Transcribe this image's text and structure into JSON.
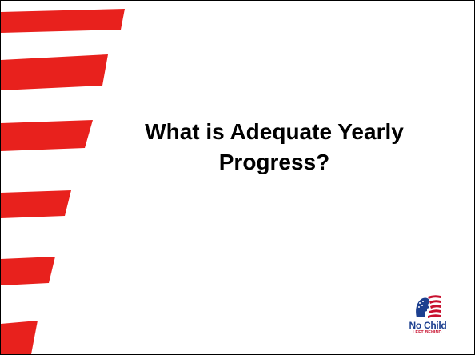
{
  "slide": {
    "title_line1": "What is Adequate Yearly",
    "title_line2": "Progress?"
  },
  "logo": {
    "line1": "No Child",
    "line2": "LEFT BEHIND."
  },
  "colors": {
    "stripe": "#e8211d",
    "logo_blue": "#1c3f8f",
    "logo_red": "#c8102e"
  }
}
